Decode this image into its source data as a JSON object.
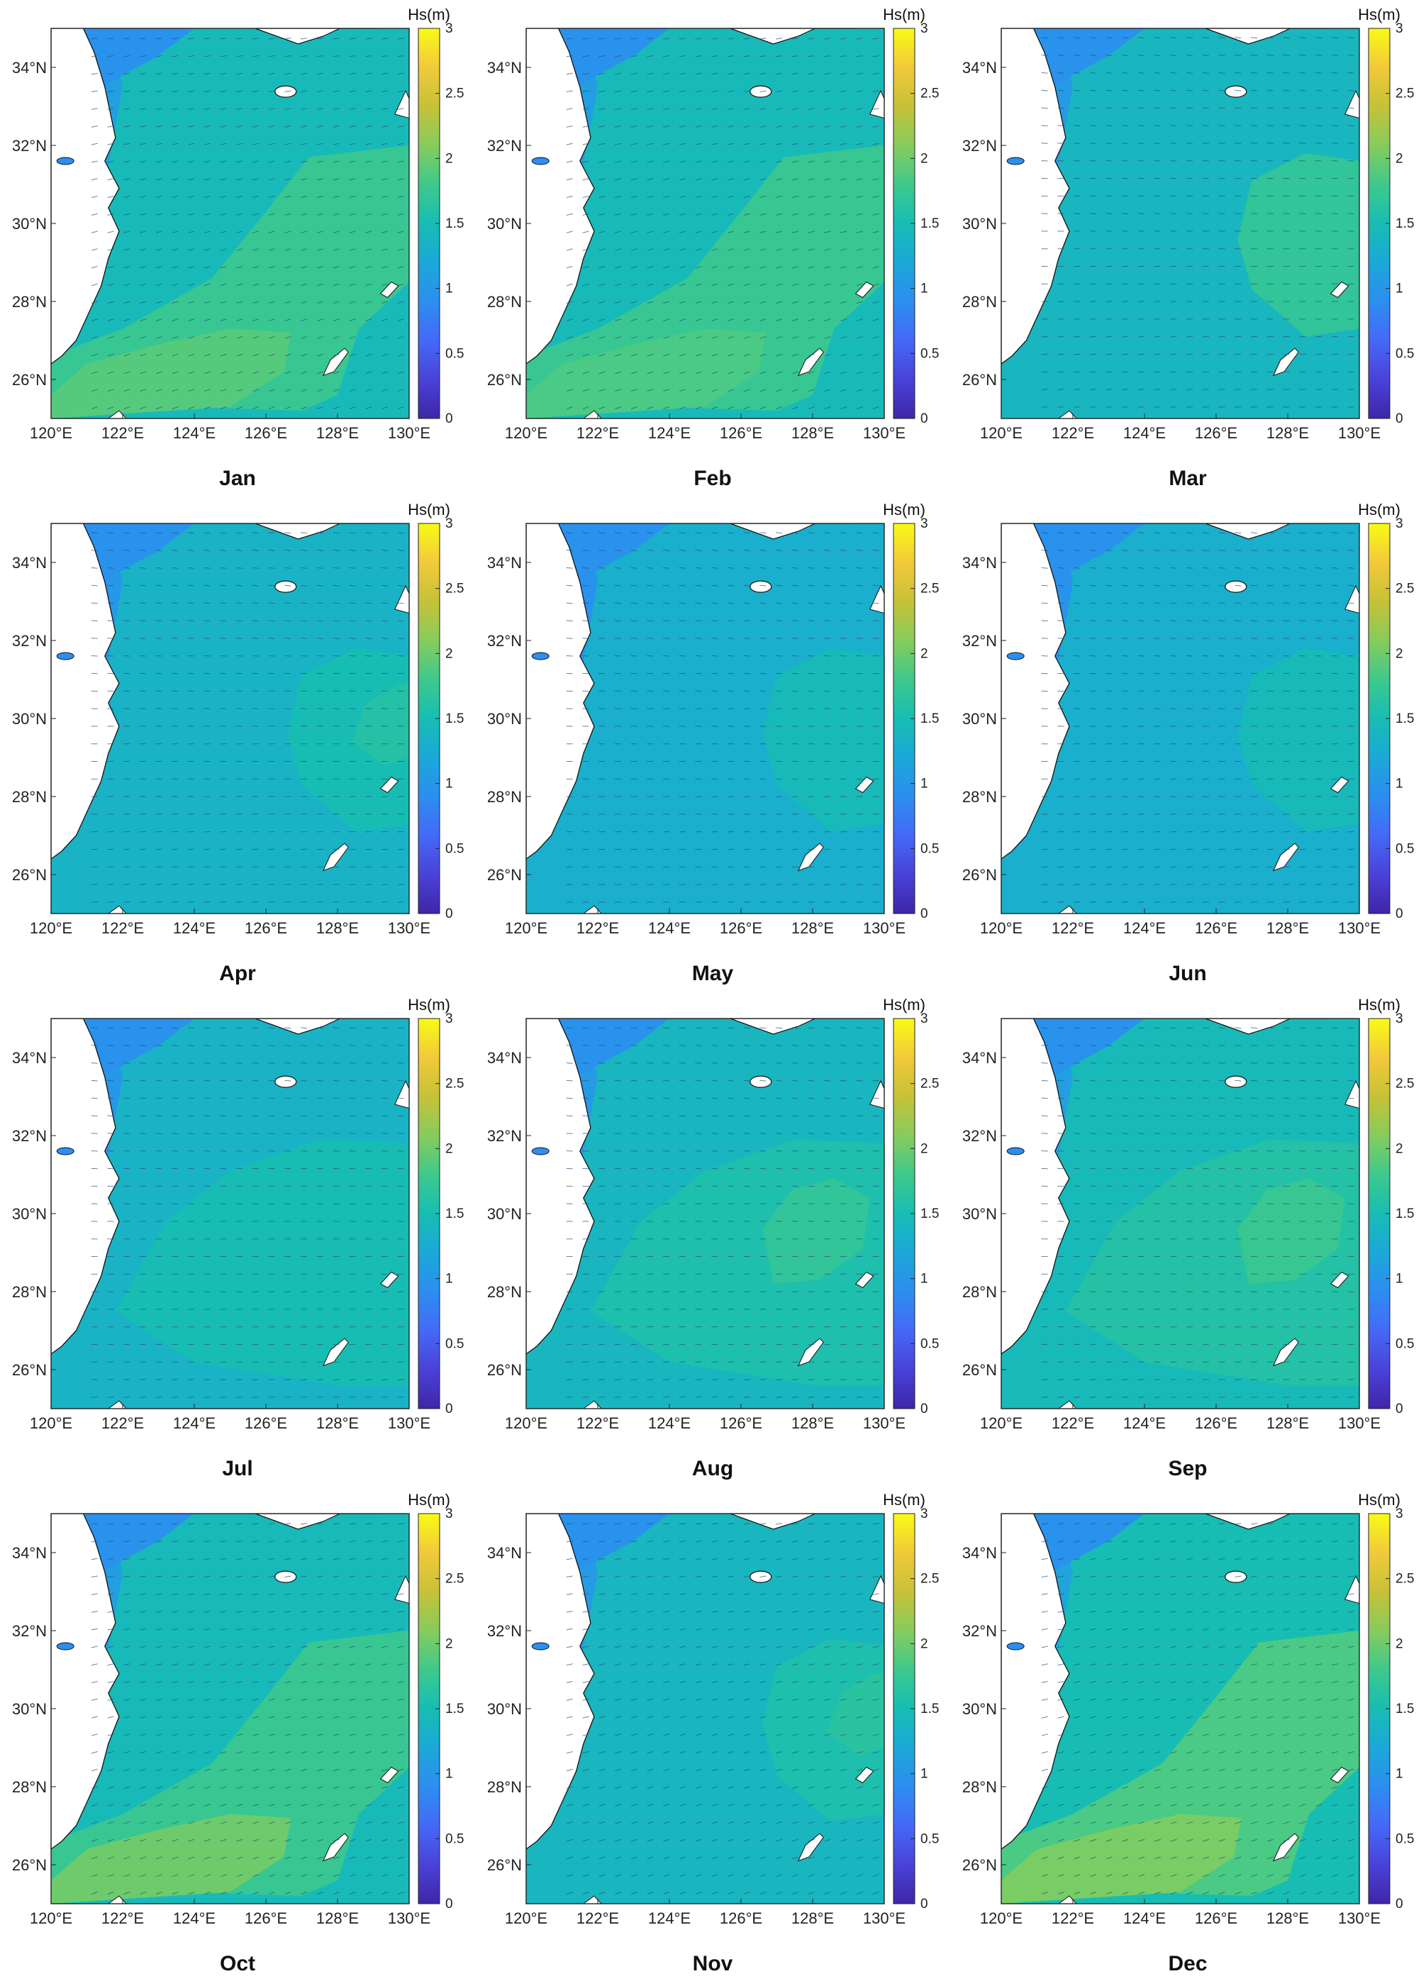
{
  "figure": {
    "colorbar": {
      "label": "Hs(m)",
      "ticks": [
        "0",
        "0.5",
        "1",
        "1.5",
        "2",
        "2.5",
        "3"
      ],
      "range": [
        0,
        3
      ],
      "colormap": [
        "#3e26a8",
        "#4a42d8",
        "#4569f7",
        "#2c8ef0",
        "#1ca8d8",
        "#17bdb3",
        "#3ec98c",
        "#86cc5c",
        "#c7c138",
        "#f2c93b",
        "#f9fb15"
      ]
    },
    "lat_ticks": [
      "26°N",
      "28°N",
      "30°N",
      "32°N",
      "34°N"
    ],
    "lon_ticks": [
      "120°E",
      "122°E",
      "124°E",
      "126°E",
      "128°E",
      "130°E"
    ],
    "extent": {
      "lon": [
        120,
        130
      ],
      "lat": [
        25,
        35
      ]
    },
    "panels": [
      {
        "month": "Jan",
        "sea_hs": 1.45,
        "core_hs": 1.75,
        "core": "southwest-band",
        "core2_hs": 1.9,
        "vec_dir": "southwest"
      },
      {
        "month": "Feb",
        "sea_hs": 1.45,
        "core_hs": 1.75,
        "core": "southwest-band",
        "core2_hs": 1.85,
        "vec_dir": "southwest"
      },
      {
        "month": "Mar",
        "sea_hs": 1.4,
        "core_hs": 1.7,
        "core": "east",
        "core2_hs": 1.7,
        "vec_dir": "west"
      },
      {
        "month": "Apr",
        "sea_hs": 1.35,
        "core_hs": 1.5,
        "core": "east",
        "core2_hs": 1.6,
        "vec_dir": "west"
      },
      {
        "month": "May",
        "sea_hs": 1.3,
        "core_hs": 1.45,
        "core": "east",
        "core2_hs": 1.45,
        "vec_dir": "west"
      },
      {
        "month": "Jun",
        "sea_hs": 1.3,
        "core_hs": 1.45,
        "core": "east",
        "core2_hs": 1.45,
        "vec_dir": "west"
      },
      {
        "month": "Jul",
        "sea_hs": 1.35,
        "core_hs": 1.5,
        "core": "central",
        "core2_hs": 1.5,
        "vec_dir": "west"
      },
      {
        "month": "Aug",
        "sea_hs": 1.4,
        "core_hs": 1.55,
        "core": "central",
        "core2_hs": 1.7,
        "vec_dir": "west"
      },
      {
        "month": "Sep",
        "sea_hs": 1.45,
        "core_hs": 1.6,
        "core": "central",
        "core2_hs": 1.75,
        "vec_dir": "west"
      },
      {
        "month": "Oct",
        "sea_hs": 1.45,
        "core_hs": 1.75,
        "core": "southwest-band",
        "core2_hs": 2.0,
        "vec_dir": "southwest"
      },
      {
        "month": "Nov",
        "sea_hs": 1.4,
        "core_hs": 1.55,
        "core": "east",
        "core2_hs": 1.65,
        "vec_dir": "southwest"
      },
      {
        "month": "Dec",
        "sea_hs": 1.5,
        "core_hs": 1.85,
        "core": "southwest-band",
        "core2_hs": 2.05,
        "vec_dir": "southwest"
      }
    ]
  }
}
